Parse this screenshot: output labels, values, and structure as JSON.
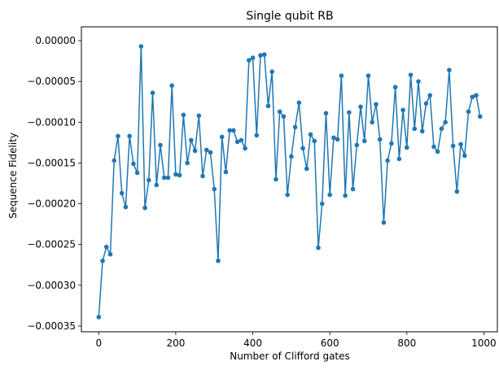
{
  "chart_data": {
    "type": "line",
    "title": "Single qubit RB",
    "xlabel": "Number of Clifford gates",
    "ylabel": "Sequence Fidelity",
    "xlim": [
      -45,
      1035
    ],
    "ylim": [
      -0.000357,
      1.7e-05
    ],
    "xticks": [
      0,
      200,
      400,
      600,
      800,
      1000
    ],
    "xtick_labels": [
      "0",
      "200",
      "400",
      "600",
      "800",
      "1000"
    ],
    "yticks": [
      -0.00035,
      -0.0003,
      -0.00025,
      -0.0002,
      -0.00015,
      -0.0001,
      -5e-05,
      0.0
    ],
    "ytick_labels": [
      "−0.00035",
      "−0.00030",
      "−0.00025",
      "−0.00020",
      "−0.00015",
      "−0.00010",
      "−0.00005",
      "0.00000"
    ],
    "grid": false,
    "series_color": "#1f77b4",
    "x": [
      0,
      10,
      20,
      30,
      40,
      50,
      60,
      70,
      80,
      90,
      100,
      110,
      120,
      130,
      140,
      150,
      160,
      170,
      180,
      190,
      200,
      210,
      220,
      230,
      240,
      250,
      260,
      270,
      280,
      290,
      300,
      310,
      320,
      330,
      340,
      350,
      360,
      370,
      380,
      390,
      400,
      410,
      420,
      430,
      440,
      450,
      460,
      470,
      480,
      490,
      500,
      510,
      520,
      530,
      540,
      550,
      560,
      570,
      580,
      590,
      600,
      610,
      620,
      630,
      640,
      650,
      660,
      670,
      680,
      690,
      700,
      710,
      720,
      730,
      740,
      750,
      760,
      770,
      780,
      790,
      800,
      810,
      820,
      830,
      840,
      850,
      860,
      870,
      880,
      890,
      900,
      910,
      920,
      930,
      940,
      950,
      960,
      970,
      980,
      990
    ],
    "y": [
      -0.000339,
      -0.00027,
      -0.000253,
      -0.000262,
      -0.000147,
      -0.000117,
      -0.000187,
      -0.000204,
      -0.000117,
      -0.000151,
      -0.000162,
      -7e-06,
      -0.000205,
      -0.000171,
      -6.4e-05,
      -0.000177,
      -0.000128,
      -0.000168,
      -0.000168,
      -5.5e-05,
      -0.000164,
      -0.000165,
      -9.1e-05,
      -0.00015,
      -0.000122,
      -0.000135,
      -9.2e-05,
      -0.000166,
      -0.000134,
      -0.000137,
      -0.000182,
      -0.00027,
      -0.000118,
      -0.000161,
      -0.00011,
      -0.00011,
      -0.000124,
      -0.000122,
      -0.000132,
      -2.4e-05,
      -2.1e-05,
      -0.000116,
      -1.8e-05,
      -1.7e-05,
      -8e-05,
      -3.8e-05,
      -0.00017,
      -8.7e-05,
      -9.3e-05,
      -0.000189,
      -0.000142,
      -0.000106,
      -7.6e-05,
      -0.000132,
      -0.000157,
      -0.000115,
      -0.000123,
      -0.000254,
      -0.0002,
      -8.9e-05,
      -0.000189,
      -0.000119,
      -0.000121,
      -4.3e-05,
      -0.00019,
      -8.8e-05,
      -0.000182,
      -0.000128,
      -8.1e-05,
      -0.000123,
      -4.3e-05,
      -0.0001,
      -7.8e-05,
      -0.000121,
      -0.000223,
      -0.000147,
      -0.000126,
      -5.7e-05,
      -0.000145,
      -8.5e-05,
      -0.000131,
      -4.2e-05,
      -0.000108,
      -5e-05,
      -0.000111,
      -7.7e-05,
      -6.7e-05,
      -0.00013,
      -0.000136,
      -0.000108,
      -0.0001,
      -3.6e-05,
      -0.000129,
      -0.000185,
      -0.000127,
      -0.000141,
      -8.7e-05,
      -6.9e-05,
      -6.7e-05,
      -9.3e-05
    ]
  }
}
